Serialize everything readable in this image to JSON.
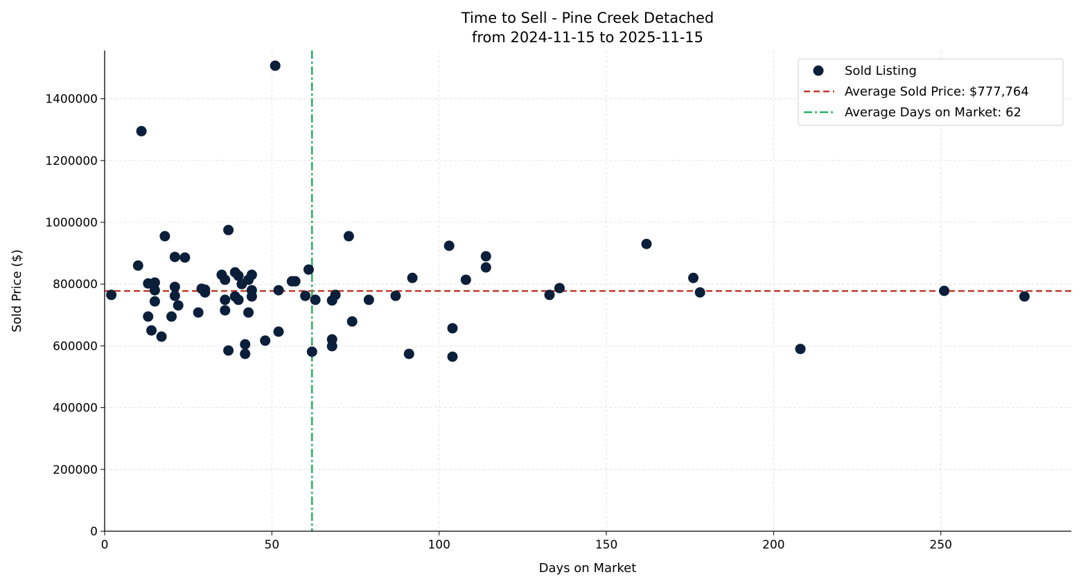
{
  "chart_data": {
    "type": "scatter",
    "title": "Time to Sell - Pine Creek Detached",
    "subtitle": "from 2024-11-15 to 2025-11-15",
    "xlabel": "Days on Market",
    "ylabel": "Sold Price ($)",
    "xlim": [
      0,
      289
    ],
    "ylim": [
      0,
      1556000
    ],
    "xticks": [
      0,
      50,
      100,
      150,
      200,
      250
    ],
    "yticks": [
      0,
      200000,
      400000,
      600000,
      800000,
      1000000,
      1200000,
      1400000
    ],
    "grid": true,
    "legend_position": "top-right",
    "legend": [
      "Sold Listing",
      "Average Sold Price: $777,764",
      "Average Days on Market: 62"
    ],
    "colors": {
      "points": "#0b1f3a",
      "avg_price": "#c0392b",
      "avg_days": "#27ae60"
    },
    "avg_price": 777764,
    "avg_days": 62,
    "series": [
      {
        "name": "Sold Listing",
        "points": [
          [
            2,
            765000
          ],
          [
            10,
            860000
          ],
          [
            11,
            1295000
          ],
          [
            13,
            802000
          ],
          [
            13,
            695000
          ],
          [
            14,
            650000
          ],
          [
            15,
            805000
          ],
          [
            15,
            780000
          ],
          [
            15,
            744000
          ],
          [
            17,
            630000
          ],
          [
            18,
            955000
          ],
          [
            20,
            695000
          ],
          [
            21,
            888000
          ],
          [
            21,
            791000
          ],
          [
            21,
            762000
          ],
          [
            22,
            731000
          ],
          [
            24,
            886000
          ],
          [
            28,
            708000
          ],
          [
            29,
            785000
          ],
          [
            30,
            782000
          ],
          [
            30,
            773000
          ],
          [
            35,
            830000
          ],
          [
            36,
            814000
          ],
          [
            36,
            749000
          ],
          [
            36,
            715000
          ],
          [
            37,
            975000
          ],
          [
            37,
            585000
          ],
          [
            39,
            838000
          ],
          [
            39,
            760000
          ],
          [
            40,
            827000
          ],
          [
            40,
            749000
          ],
          [
            41,
            800000
          ],
          [
            42,
            605000
          ],
          [
            42,
            574000
          ],
          [
            43,
            814000
          ],
          [
            43,
            708000
          ],
          [
            44,
            830000
          ],
          [
            44,
            780000
          ],
          [
            44,
            760000
          ],
          [
            48,
            617000
          ],
          [
            51,
            1507000
          ],
          [
            52,
            780000
          ],
          [
            52,
            646000
          ],
          [
            56,
            809000
          ],
          [
            57,
            809000
          ],
          [
            60,
            762000
          ],
          [
            61,
            847000
          ],
          [
            62,
            581000
          ],
          [
            63,
            749000
          ],
          [
            68,
            747000
          ],
          [
            68,
            621000
          ],
          [
            68,
            599000
          ],
          [
            69,
            765000
          ],
          [
            73,
            955000
          ],
          [
            74,
            679000
          ],
          [
            79,
            749000
          ],
          [
            87,
            762000
          ],
          [
            91,
            574000
          ],
          [
            92,
            820000
          ],
          [
            103,
            924000
          ],
          [
            104,
            657000
          ],
          [
            104,
            565000
          ],
          [
            108,
            814000
          ],
          [
            114,
            890000
          ],
          [
            114,
            854000
          ],
          [
            133,
            765000
          ],
          [
            136,
            787000
          ],
          [
            162,
            930000
          ],
          [
            176,
            820000
          ],
          [
            178,
            773000
          ],
          [
            208,
            590000
          ],
          [
            251,
            778000
          ],
          [
            275,
            760000
          ]
        ]
      }
    ]
  }
}
